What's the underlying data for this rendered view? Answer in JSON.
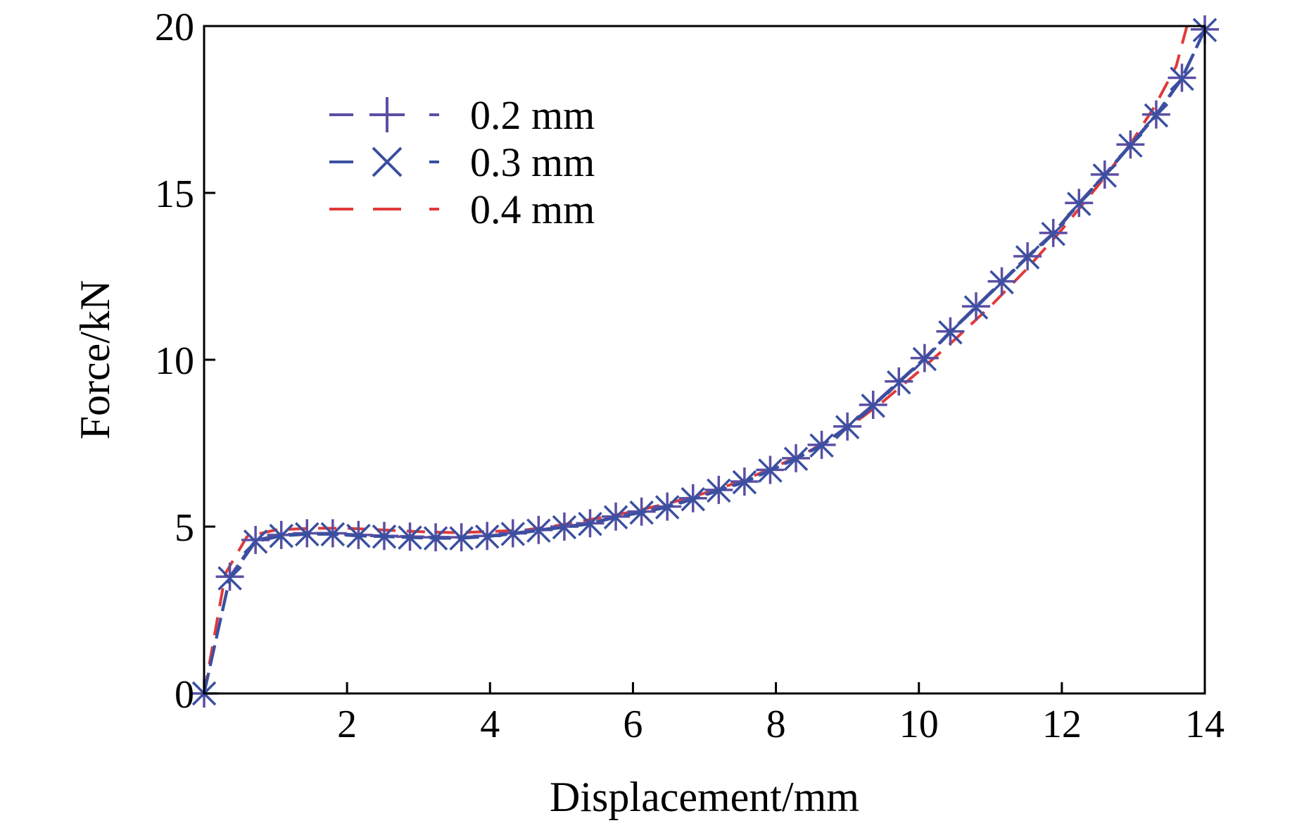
{
  "chart_data": {
    "type": "line",
    "title": "",
    "xlabel": "Displacement/mm",
    "ylabel": "Force/kN",
    "xlim": [
      0,
      14
    ],
    "ylim": [
      0,
      20
    ],
    "x_ticks": [
      2,
      4,
      6,
      8,
      10,
      12,
      14
    ],
    "y_ticks": [
      0,
      5,
      10,
      15,
      20
    ],
    "grid": false,
    "legend_position": "top-left",
    "series": [
      {
        "name": "0.2 mm",
        "color": "#5a4fa3",
        "line": "dashed",
        "marker": "plus",
        "x": [
          0,
          0.36,
          0.72,
          1.08,
          1.44,
          1.8,
          2.16,
          2.52,
          2.88,
          3.24,
          3.6,
          3.96,
          4.32,
          4.68,
          5.04,
          5.4,
          5.76,
          6.12,
          6.48,
          6.84,
          7.2,
          7.56,
          7.92,
          8.28,
          8.64,
          9.0,
          9.36,
          9.72,
          10.08,
          10.44,
          10.8,
          11.16,
          11.52,
          11.88,
          12.24,
          12.6,
          12.96,
          13.32,
          13.68,
          14.0
        ],
        "y": [
          0,
          3.5,
          4.6,
          4.75,
          4.8,
          4.8,
          4.75,
          4.72,
          4.7,
          4.68,
          4.68,
          4.72,
          4.8,
          4.9,
          5.0,
          5.1,
          5.3,
          5.45,
          5.6,
          5.85,
          6.1,
          6.35,
          6.7,
          7.05,
          7.45,
          8.0,
          8.65,
          9.35,
          10.05,
          10.85,
          11.6,
          12.35,
          13.1,
          13.8,
          14.7,
          15.55,
          16.45,
          17.35,
          18.45,
          19.9
        ]
      },
      {
        "name": "0.3 mm",
        "color": "#3a4fa0",
        "line": "dashed",
        "marker": "x",
        "x": [
          0,
          0.36,
          0.72,
          1.08,
          1.44,
          1.8,
          2.16,
          2.52,
          2.88,
          3.24,
          3.6,
          3.96,
          4.32,
          4.68,
          5.04,
          5.4,
          5.76,
          6.12,
          6.48,
          6.84,
          7.2,
          7.56,
          7.92,
          8.28,
          8.64,
          9.0,
          9.36,
          9.72,
          10.08,
          10.44,
          10.8,
          11.16,
          11.52,
          11.88,
          12.24,
          12.6,
          12.96,
          13.32,
          13.68,
          14.0
        ],
        "y": [
          0,
          3.45,
          4.55,
          4.72,
          4.77,
          4.77,
          4.72,
          4.7,
          4.67,
          4.65,
          4.65,
          4.7,
          4.78,
          4.88,
          4.98,
          5.08,
          5.28,
          5.42,
          5.58,
          5.82,
          6.08,
          6.33,
          6.68,
          7.03,
          7.43,
          7.98,
          8.62,
          9.32,
          10.02,
          10.82,
          11.57,
          12.32,
          13.07,
          13.77,
          14.67,
          15.52,
          16.42,
          17.32,
          18.42,
          19.88
        ]
      },
      {
        "name": "0.4 mm",
        "color": "#e03a3a",
        "line": "dashed",
        "marker": "none",
        "x": [
          0,
          0.3,
          0.6,
          1.0,
          1.5,
          2.0,
          2.5,
          3.0,
          3.5,
          4.0,
          4.5,
          5.0,
          5.5,
          6.0,
          6.5,
          7.0,
          7.5,
          8.0,
          8.5,
          9.0,
          9.5,
          10.0,
          10.5,
          11.0,
          11.5,
          12.0,
          12.5,
          13.0,
          13.3,
          13.6,
          13.75
        ],
        "y": [
          0,
          3.6,
          4.7,
          4.9,
          4.95,
          4.95,
          4.9,
          4.85,
          4.82,
          4.85,
          4.9,
          5.05,
          5.25,
          5.45,
          5.7,
          6.0,
          6.35,
          6.8,
          7.3,
          7.95,
          8.75,
          9.65,
          10.6,
          11.6,
          12.7,
          13.9,
          15.2,
          16.6,
          17.6,
          18.8,
          20.0
        ]
      }
    ]
  }
}
